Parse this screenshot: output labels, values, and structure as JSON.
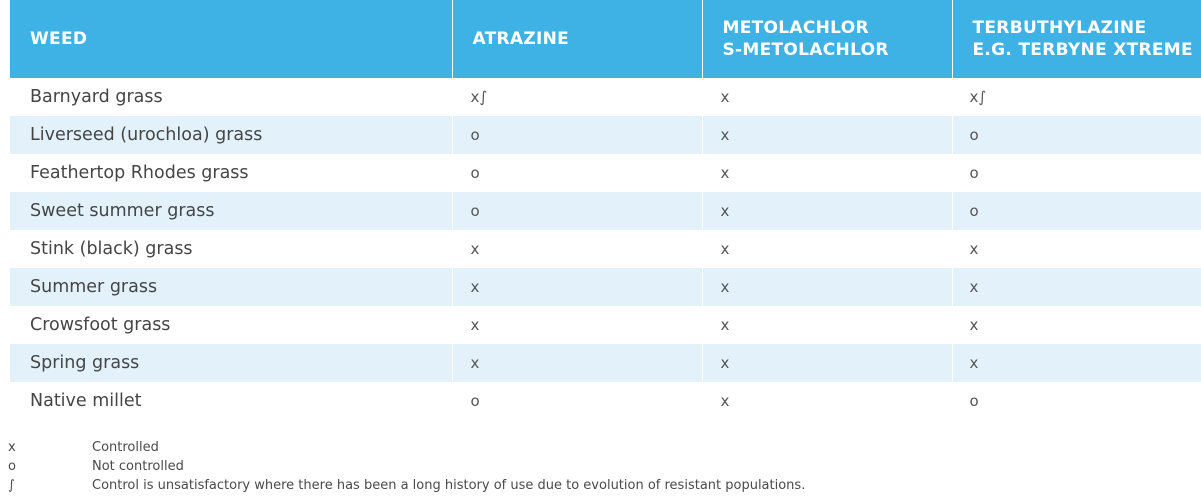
{
  "table": {
    "headers": [
      [
        "WEED"
      ],
      [
        "ATRAZINE"
      ],
      [
        "METOLACHLOR",
        "S-METOLACHLOR"
      ],
      [
        "TERBUTHYLAZINE",
        "E.G. TERBYNE XTREME"
      ]
    ],
    "rows": [
      [
        "Barnyard grass",
        "x∫",
        "x",
        "x∫"
      ],
      [
        "Liverseed (urochloa) grass",
        "o",
        "x",
        "o"
      ],
      [
        "Feathertop Rhodes grass",
        "o",
        "x",
        "o"
      ],
      [
        "Sweet summer grass",
        "o",
        "x",
        "o"
      ],
      [
        "Stink (black) grass",
        "x",
        "x",
        "x"
      ],
      [
        "Summer grass",
        "x",
        "x",
        "x"
      ],
      [
        "Crowsfoot grass",
        "x",
        "x",
        "x"
      ],
      [
        "Spring grass",
        "x",
        "x",
        "x"
      ],
      [
        "Native millet",
        "o",
        "x",
        "o"
      ]
    ]
  },
  "legend": [
    {
      "symbol": "x",
      "text": "Controlled"
    },
    {
      "symbol": "o",
      "text": "Not controlled"
    },
    {
      "symbol": "∫",
      "text": "Control is unsatisfactory where there has been a long history of use due to evolution of resistant populations."
    }
  ],
  "colors": {
    "header_bg": "#3fb2e5",
    "stripe_bg": "#e3f1fb"
  }
}
